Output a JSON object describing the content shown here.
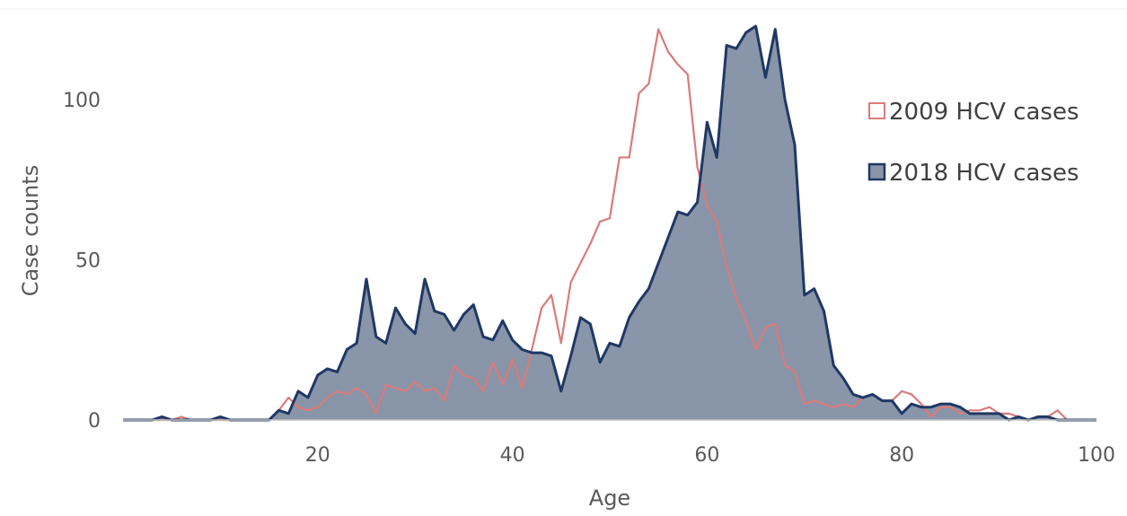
{
  "chart_data": {
    "type": "area",
    "xlabel": "Age",
    "ylabel": "Case counts",
    "xlim": [
      0,
      100
    ],
    "ylim": [
      0,
      125
    ],
    "x_ticks": [
      20,
      40,
      60,
      80,
      100
    ],
    "y_ticks": [
      0,
      50,
      100
    ],
    "grid": false,
    "legend_position": "top-right",
    "x": [
      0,
      1,
      2,
      3,
      4,
      5,
      6,
      7,
      8,
      9,
      10,
      11,
      12,
      13,
      14,
      15,
      16,
      17,
      18,
      19,
      20,
      21,
      22,
      23,
      24,
      25,
      26,
      27,
      28,
      29,
      30,
      31,
      32,
      33,
      34,
      35,
      36,
      37,
      38,
      39,
      40,
      41,
      42,
      43,
      44,
      45,
      46,
      47,
      48,
      49,
      50,
      51,
      52,
      53,
      54,
      55,
      56,
      57,
      58,
      59,
      60,
      61,
      62,
      63,
      64,
      65,
      66,
      67,
      68,
      69,
      70,
      71,
      72,
      73,
      74,
      75,
      76,
      77,
      78,
      79,
      80,
      81,
      82,
      83,
      84,
      85,
      86,
      87,
      88,
      89,
      90,
      91,
      92,
      93,
      94,
      95,
      96,
      97,
      98,
      99,
      100
    ],
    "series": [
      {
        "name": "2009 HCV cases",
        "style": "line",
        "color": "#d97b7b",
        "values": [
          0,
          0,
          0,
          0,
          0,
          0,
          1,
          0,
          0,
          0,
          0,
          0,
          0,
          0,
          0,
          0,
          3,
          7,
          4,
          3,
          4,
          7,
          9,
          8,
          10,
          8,
          2,
          11,
          10,
          9,
          12,
          9,
          10,
          6,
          17,
          14,
          13,
          9,
          18,
          11,
          19,
          10,
          22,
          35,
          39,
          24,
          43,
          49,
          55,
          62,
          63,
          82,
          82,
          102,
          105,
          122,
          115,
          111,
          108,
          79,
          67,
          62,
          48,
          38,
          31,
          22,
          29,
          30,
          17,
          15,
          5,
          6,
          5,
          4,
          5,
          4,
          7,
          8,
          6,
          6,
          9,
          8,
          5,
          1,
          4,
          4,
          2,
          3,
          3,
          4,
          2,
          2,
          1,
          0,
          1,
          1,
          3,
          0,
          0,
          0,
          0
        ]
      },
      {
        "name": "2018 HCV cases",
        "style": "area",
        "color": "#1f3864",
        "fill": "#8995a8",
        "values": [
          0,
          0,
          0,
          0,
          1,
          0,
          0,
          0,
          0,
          0,
          1,
          0,
          0,
          0,
          0,
          0,
          3,
          2,
          9,
          7,
          14,
          16,
          15,
          22,
          24,
          44,
          26,
          24,
          35,
          30,
          27,
          44,
          34,
          33,
          28,
          33,
          36,
          26,
          25,
          31,
          25,
          22,
          21,
          21,
          20,
          9,
          20,
          32,
          30,
          18,
          24,
          23,
          32,
          37,
          41,
          49,
          57,
          65,
          64,
          68,
          93,
          82,
          117,
          116,
          121,
          123,
          107,
          122,
          100,
          86,
          39,
          41,
          34,
          17,
          13,
          8,
          7,
          8,
          6,
          6,
          2,
          5,
          4,
          4,
          5,
          5,
          4,
          2,
          2,
          2,
          2,
          0,
          1,
          0,
          1,
          1,
          0,
          0,
          0,
          0,
          0
        ]
      }
    ]
  }
}
